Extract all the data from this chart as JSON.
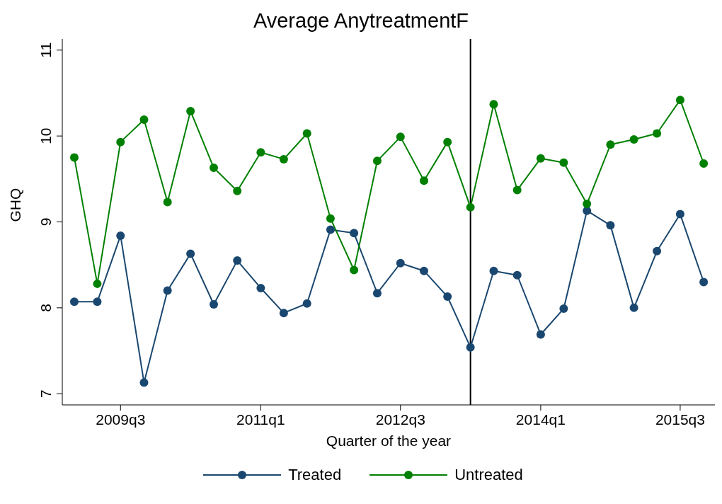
{
  "chart_data": {
    "type": "line",
    "title": "Average AnytreatmentF",
    "xlabel": "Quarter of the year",
    "ylabel": "GHQ",
    "x": [
      "2009-01",
      "2009-04",
      "2009-07",
      "2009-10",
      "2010-01",
      "2010-04",
      "2010-07",
      "2010-10",
      "2011-01",
      "2011-04",
      "2011-07",
      "2011-10",
      "2012-01",
      "2012-04",
      "2012-07",
      "2012-10",
      "2013-01",
      "2013-04",
      "2013-07",
      "2013-10",
      "2014-01",
      "2014-04",
      "2014-07",
      "2014-10",
      "2015-01",
      "2015-04",
      "2015-07",
      "2015-10"
    ],
    "series": [
      {
        "name": "Treated",
        "color": "#1a476f",
        "values": [
          8.07,
          8.07,
          8.84,
          7.13,
          8.2,
          8.63,
          8.04,
          8.55,
          8.23,
          7.94,
          8.05,
          8.91,
          8.87,
          8.17,
          8.52,
          8.43,
          8.13,
          7.54,
          8.43,
          8.38,
          7.69,
          7.99,
          9.13,
          8.96,
          8.0,
          8.66,
          9.09,
          8.3
        ]
      },
      {
        "name": "Untreated",
        "color": "#008000",
        "values": [
          9.75,
          8.28,
          9.93,
          10.19,
          9.23,
          10.29,
          9.63,
          9.36,
          9.81,
          9.73,
          10.03,
          9.04,
          8.44,
          9.71,
          9.99,
          9.48,
          9.93,
          9.17,
          10.37,
          9.37,
          9.74,
          9.69,
          9.21,
          9.9,
          9.96,
          10.03,
          10.42,
          9.68
        ]
      }
    ],
    "xlim": [
      "2008-11-15",
      "2015-11-14"
    ],
    "xticks": [
      {
        "value": "2009-07",
        "label": "2009q3"
      },
      {
        "value": "2011-01",
        "label": "2011q1"
      },
      {
        "value": "2012-07",
        "label": "2012q3"
      },
      {
        "value": "2014-01",
        "label": "2014q1"
      },
      {
        "value": "2015-07",
        "label": "2015q3"
      }
    ],
    "ylim": [
      6.87,
      11.13
    ],
    "yticks": [
      7,
      8,
      9,
      10,
      11
    ],
    "ref_lines": [
      {
        "axis": "x",
        "value": "2013-04",
        "color": "#000000"
      }
    ],
    "grid": false,
    "legend": "bottom",
    "marker": "circle",
    "line_style": "solid"
  }
}
